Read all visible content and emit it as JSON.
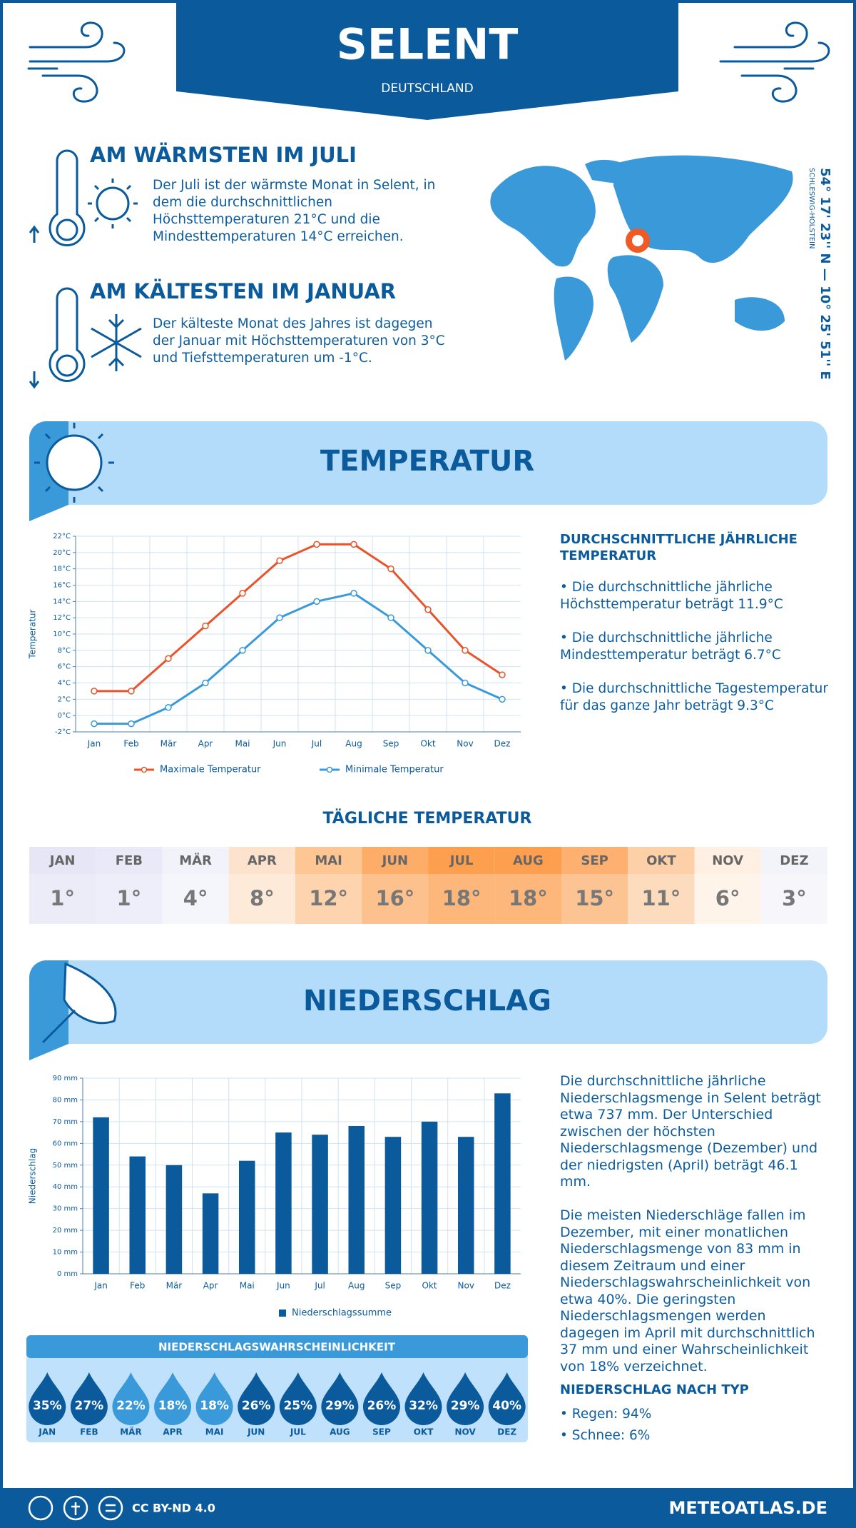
{
  "header": {
    "title": "SELENT",
    "subtitle": "DEUTSCHLAND"
  },
  "warmest": {
    "title": "AM WÄRMSTEN IM JULI",
    "text": "Der Juli ist der wärmste Monat in Selent, in dem die durchschnittlichen Höchsttemperaturen 21°C und die Mindesttemperaturen 14°C erreichen."
  },
  "coldest": {
    "title": "AM KÄLTESTEN IM JANUAR",
    "text": "Der kälteste Monat des Jahres ist dagegen der Januar mit Höchsttemperaturen von 3°C und Tiefsttemperaturen um -1°C."
  },
  "location": {
    "coordinates": "54° 17' 23'' N — 10° 25' 51'' E",
    "region": "SCHLESWIG-HOLSTEIN"
  },
  "temperature_section": {
    "title": "TEMPERATUR",
    "summary_title": "DURCHSCHNITTLICHE JÄHRLICHE TEMPERATUR",
    "bullets": [
      "• Die durchschnittliche jährliche Höchsttemperatur beträgt 11.9°C",
      "• Die durchschnittliche jährliche Mindesttemperatur beträgt 6.7°C",
      "• Die durchschnittliche Tagestemperatur für das ganze Jahr beträgt 9.3°C"
    ]
  },
  "chart_data": [
    {
      "type": "line",
      "y_label": "Temperatur",
      "categories": [
        "Jan",
        "Feb",
        "Mär",
        "Apr",
        "Mai",
        "Jun",
        "Jul",
        "Aug",
        "Sep",
        "Okt",
        "Nov",
        "Dez"
      ],
      "series": [
        {
          "name": "Maximale Temperatur",
          "color": "#e8532a",
          "values": [
            3,
            3,
            7,
            11,
            15,
            19,
            21,
            21,
            18,
            13,
            8,
            5
          ]
        },
        {
          "name": "Minimale Temperatur",
          "color": "#3a9ad9",
          "values": [
            -1,
            -1,
            1,
            4,
            8,
            12,
            14,
            15,
            12,
            8,
            4,
            2
          ]
        }
      ],
      "ylim": [
        -2,
        22
      ],
      "yticks": [
        {
          "value": -2,
          "label": "-2°C"
        },
        {
          "value": 0,
          "label": "0°C"
        },
        {
          "value": 2,
          "label": "2°C"
        },
        {
          "value": 4,
          "label": "4°C"
        },
        {
          "value": 6,
          "label": "6°C"
        },
        {
          "value": 8,
          "label": "8°C"
        },
        {
          "value": 10,
          "label": "10°C"
        },
        {
          "value": 12,
          "label": "12°C"
        },
        {
          "value": 14,
          "label": "14°C"
        },
        {
          "value": 16,
          "label": "16°C"
        },
        {
          "value": 18,
          "label": "18°C"
        },
        {
          "value": 20,
          "label": "20°C"
        },
        {
          "value": 22,
          "label": "22°C"
        }
      ],
      "grid": true,
      "legend": "bottom"
    },
    {
      "type": "bar",
      "y_label": "Niederschlag",
      "categories": [
        "Jan",
        "Feb",
        "Mär",
        "Apr",
        "Mai",
        "Jun",
        "Jul",
        "Aug",
        "Sep",
        "Okt",
        "Nov",
        "Dez"
      ],
      "series": [
        {
          "name": "Niederschlagssumme",
          "color": "#0a5a9c",
          "values": [
            72,
            54,
            50,
            37,
            52,
            65,
            64,
            68,
            63,
            70,
            63,
            83
          ]
        }
      ],
      "ylim": [
        0,
        90
      ],
      "yticks": [
        {
          "value": 0,
          "label": "0 mm"
        },
        {
          "value": 10,
          "label": "10 mm"
        },
        {
          "value": 20,
          "label": "20 mm"
        },
        {
          "value": 30,
          "label": "30 mm"
        },
        {
          "value": 40,
          "label": "40 mm"
        },
        {
          "value": 50,
          "label": "50 mm"
        },
        {
          "value": 60,
          "label": "60 mm"
        },
        {
          "value": 70,
          "label": "70 mm"
        },
        {
          "value": 80,
          "label": "80 mm"
        },
        {
          "value": 90,
          "label": "90 mm"
        }
      ],
      "grid": true,
      "legend": "bottom"
    }
  ],
  "daily_temperature": {
    "title": "TÄGLICHE TEMPERATUR",
    "months": [
      "JAN",
      "FEB",
      "MÄR",
      "APR",
      "MAI",
      "JUN",
      "JUL",
      "AUG",
      "SEP",
      "OKT",
      "NOV",
      "DEZ"
    ],
    "values": [
      "1°",
      "1°",
      "4°",
      "8°",
      "12°",
      "16°",
      "18°",
      "18°",
      "15°",
      "11°",
      "6°",
      "3°"
    ],
    "colors": [
      "#e6e6f7",
      "#e9e9f8",
      "#f2f2fb",
      "#fde3cd",
      "#fdc692",
      "#fdad68",
      "#fd9f4e",
      "#fd9f4e",
      "#fdb06f",
      "#fdd0a8",
      "#fff0e3",
      "#f3f3fa"
    ]
  },
  "precipitation_section": {
    "title": "NIEDERSCHLAG",
    "paragraphs": [
      "Die durchschnittliche jährliche Niederschlagsmenge in Selent beträgt etwa 737 mm. Der Unterschied zwischen der höchsten Niederschlagsmenge (Dezember) und der niedrigsten (April) beträgt 46.1 mm.",
      "Die meisten Niederschläge fallen im Dezember, mit einer monatlichen Niederschlagsmenge von 83 mm in diesem Zeitraum und einer Niederschlagswahrscheinlichkeit von etwa 40%. Die geringsten Niederschlagsmengen werden dagegen im April mit durchschnittlich 37 mm und einer Wahrscheinlichkeit von 18% verzeichnet."
    ],
    "type_title": "NIEDERSCHLAG NACH TYP",
    "types": [
      "• Regen: 94%",
      "• Schnee: 6%"
    ]
  },
  "probability": {
    "title": "NIEDERSCHLAGSWAHRSCHEINLICHKEIT",
    "months": [
      "JAN",
      "FEB",
      "MÄR",
      "APR",
      "MAI",
      "JUN",
      "JUL",
      "AUG",
      "SEP",
      "OKT",
      "NOV",
      "DEZ"
    ],
    "values": [
      "35%",
      "27%",
      "22%",
      "18%",
      "18%",
      "26%",
      "25%",
      "29%",
      "26%",
      "32%",
      "29%",
      "40%"
    ],
    "colors": [
      "#0a5a9c",
      "#0a5a9c",
      "#3a9ad9",
      "#3a9ad9",
      "#3a9ad9",
      "#0a5a9c",
      "#0a5a9c",
      "#0a5a9c",
      "#0a5a9c",
      "#0a5a9c",
      "#0a5a9c",
      "#0a5a9c"
    ]
  },
  "footer": {
    "license": "CC BY-ND 4.0",
    "site": "METEOATLAS.DE"
  }
}
